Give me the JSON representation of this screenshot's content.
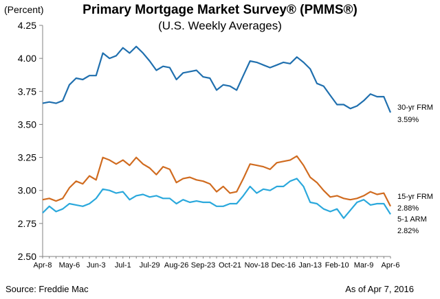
{
  "chart_data": {
    "type": "line",
    "title": "Primary Mortgage Market Survey® (PMMS®)",
    "subtitle": "(U.S. Weekly Averages)",
    "ylabel": "(Percent)",
    "ylim": [
      2.5,
      4.25
    ],
    "yticks": [
      "4.25",
      "4.00",
      "3.75",
      "3.50",
      "3.25",
      "3.00",
      "2.75",
      "2.50"
    ],
    "ytick_values": [
      4.25,
      4.0,
      3.75,
      3.5,
      3.25,
      3.0,
      2.75,
      2.5
    ],
    "xtick_labels": [
      "Apr-8",
      "May-6",
      "Jun-3",
      "Jul-1",
      "Jul-29",
      "Aug-26",
      "Sep-23",
      "Oct-21",
      "Nov-18",
      "Dec-16",
      "Jan-13",
      "Feb-10",
      "Mar-9",
      "Apr-6"
    ],
    "xtick_index": [
      0,
      4,
      8,
      12,
      16,
      20,
      24,
      28,
      32,
      36,
      40,
      44,
      48,
      52
    ],
    "grid": false,
    "series": [
      {
        "name": "30-yr FRM",
        "color": "#1f6fae",
        "end_label": "3.59%",
        "values": [
          3.66,
          3.67,
          3.66,
          3.68,
          3.8,
          3.85,
          3.84,
          3.87,
          3.87,
          4.04,
          4.0,
          4.02,
          4.08,
          4.04,
          4.09,
          4.04,
          3.98,
          3.91,
          3.94,
          3.93,
          3.84,
          3.89,
          3.9,
          3.91,
          3.86,
          3.85,
          3.76,
          3.8,
          3.79,
          3.76,
          3.87,
          3.98,
          3.97,
          3.95,
          3.93,
          3.95,
          3.97,
          3.96,
          4.01,
          3.97,
          3.92,
          3.81,
          3.79,
          3.72,
          3.65,
          3.65,
          3.62,
          3.64,
          3.68,
          3.73,
          3.71,
          3.71,
          3.59
        ]
      },
      {
        "name": "15-yr FRM",
        "color": "#d06b1f",
        "end_label": "2.88%",
        "values": [
          2.93,
          2.94,
          2.92,
          2.94,
          3.02,
          3.07,
          3.05,
          3.11,
          3.08,
          3.25,
          3.23,
          3.2,
          3.23,
          3.19,
          3.25,
          3.2,
          3.17,
          3.12,
          3.18,
          3.16,
          3.06,
          3.09,
          3.1,
          3.08,
          3.07,
          3.05,
          2.99,
          3.03,
          2.98,
          2.99,
          3.09,
          3.2,
          3.19,
          3.18,
          3.16,
          3.21,
          3.22,
          3.23,
          3.26,
          3.19,
          3.1,
          3.06,
          3.0,
          2.95,
          2.96,
          2.94,
          2.93,
          2.94,
          2.96,
          2.99,
          2.97,
          2.98,
          2.88
        ]
      },
      {
        "name": "5-1 ARM",
        "color": "#2aa8dc",
        "end_label": "2.82%",
        "values": [
          2.83,
          2.88,
          2.84,
          2.86,
          2.9,
          2.89,
          2.88,
          2.9,
          2.94,
          3.01,
          3.0,
          2.98,
          2.99,
          2.93,
          2.96,
          2.97,
          2.95,
          2.96,
          2.94,
          2.94,
          2.9,
          2.93,
          2.91,
          2.92,
          2.91,
          2.91,
          2.88,
          2.88,
          2.9,
          2.9,
          2.96,
          3.03,
          2.98,
          3.01,
          3.0,
          3.03,
          3.03,
          3.07,
          3.09,
          3.03,
          2.91,
          2.9,
          2.86,
          2.84,
          2.86,
          2.79,
          2.85,
          2.91,
          2.93,
          2.89,
          2.9,
          2.9,
          2.82
        ]
      }
    ]
  },
  "footer": {
    "source": "Source: Freddie Mac",
    "as_of": "As of Apr 7, 2016"
  }
}
